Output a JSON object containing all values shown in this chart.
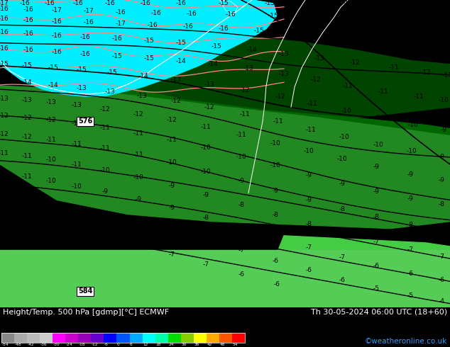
{
  "title_left": "Height/Temp. 500 hPa [gdmp][°C] ECMWF",
  "title_right": "Th 30-05-2024 06:00 UTC (18+60)",
  "credit": "©weatheronline.co.uk",
  "fig_width": 6.34,
  "fig_height": 4.9,
  "dpi": 100,
  "sea_color": "#00eeff",
  "land_dark1": "#006600",
  "land_dark2": "#005500",
  "land_mid": "#228822",
  "land_light": "#44bb44",
  "land_bright": "#66dd44",
  "white_border": "#ffffff",
  "pink_border": "#ff9999",
  "bottom_bg": "#000000",
  "text_color": "#ffffff",
  "credit_color": "#3399ff",
  "cbar_colors": [
    "#888888",
    "#aaaaaa",
    "#bbbbbb",
    "#cccccc",
    "#ff00ff",
    "#cc00cc",
    "#9900bb",
    "#6600cc",
    "#0000ff",
    "#0055ff",
    "#00aaff",
    "#00ffff",
    "#00ffaa",
    "#00dd00",
    "#88cc00",
    "#ffff00",
    "#ffaa00",
    "#ff5500",
    "#ff0000"
  ],
  "cbar_labels": [
    "-54",
    "-48",
    "-42",
    "-36",
    "-30",
    "-24",
    "-18",
    "-12",
    "-6",
    "0",
    "6",
    "12",
    "18",
    "24",
    "30",
    "36",
    "42",
    "48",
    "54"
  ]
}
